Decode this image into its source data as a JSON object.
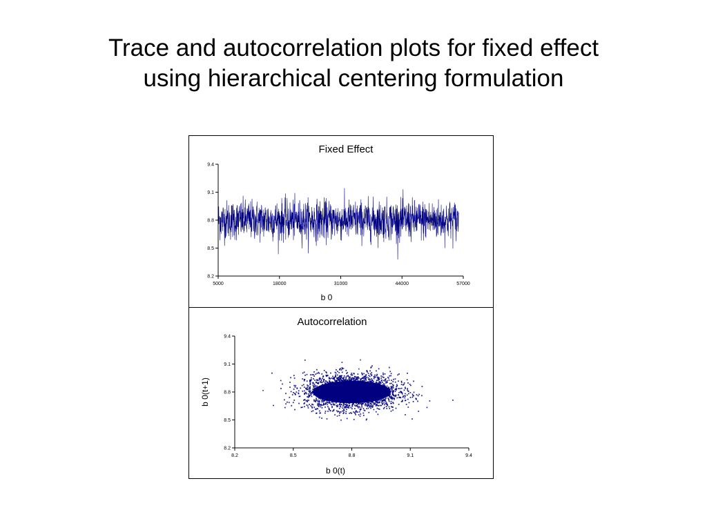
{
  "title": {
    "line1": "Trace and autocorrelation plots for fixed effect",
    "line2": "using hierarchical centering formulation"
  },
  "colors": {
    "series": "#000080",
    "axis": "#000000"
  },
  "chart_data": [
    {
      "type": "line",
      "title": "Fixed Effect",
      "xlabel": "b 0",
      "ylabel": "",
      "xlim": [
        5000,
        57000
      ],
      "ylim": [
        8.2,
        9.4
      ],
      "xticks": [
        "5000",
        "18000",
        "31000",
        "44000",
        "57000"
      ],
      "yticks": [
        "9.4",
        "9.1",
        "8.8",
        "8.5",
        "8.2"
      ],
      "series": [
        {
          "values_summary": {
            "x_start": 5000,
            "x_end": 56000,
            "mean": 8.8,
            "typical_min": 8.55,
            "typical_max": 9.05,
            "extreme_min": 8.25,
            "extreme_max": 9.2
          }
        }
      ],
      "grid": false,
      "legend": "none"
    },
    {
      "type": "scatter",
      "title": "Autocorrelation",
      "xlabel": "b 0(t)",
      "ylabel": "b 0(t+1)",
      "xlim": [
        8.2,
        9.4
      ],
      "ylim": [
        8.2,
        9.4
      ],
      "xticks": [
        "8.2",
        "8.5",
        "8.8",
        "9.1",
        "9.4"
      ],
      "yticks": [
        "9.4",
        "9.1",
        "8.8",
        "8.5",
        "8.2"
      ],
      "series": [
        {
          "values_summary": {
            "center_x": 8.8,
            "center_y": 8.8,
            "spread_x": 0.22,
            "spread_y": 0.16
          }
        }
      ],
      "grid": false,
      "legend": "none"
    }
  ]
}
